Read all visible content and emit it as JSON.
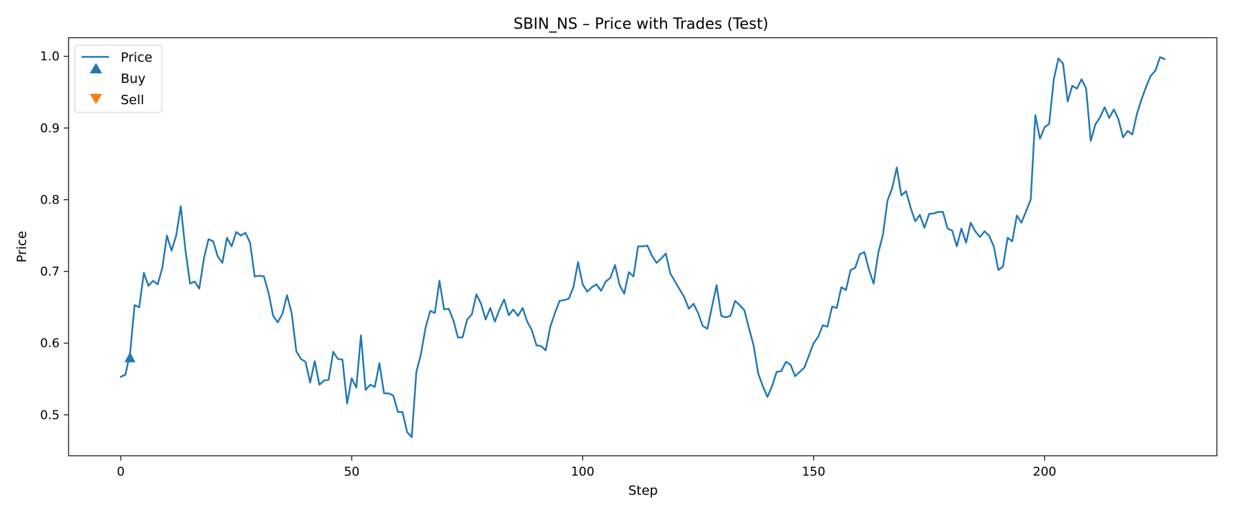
{
  "chart_data": {
    "type": "line",
    "title": "SBIN_NS – Price with Trades (Test)",
    "xlabel": "Step",
    "ylabel": "Price",
    "xlim": [
      -11.3,
      237.3
    ],
    "ylim": [
      0.443,
      1.026
    ],
    "xticks": [
      0,
      50,
      100,
      150,
      200
    ],
    "yticks": [
      0.5,
      0.6,
      0.7,
      0.8,
      0.9,
      1.0
    ],
    "xtick_labels": [
      "0",
      "50",
      "100",
      "150",
      "200"
    ],
    "ytick_labels": [
      "0.5",
      "0.6",
      "0.7",
      "0.8",
      "0.9",
      "1.0"
    ],
    "grid": false,
    "legend_position": "top-left",
    "colors": {
      "price": "#1f77b4",
      "buy": "#1f77b4",
      "sell": "#ff7f0e"
    },
    "series": [
      {
        "name": "Price",
        "type": "line",
        "x_start": 0,
        "values": [
          0.553,
          0.556,
          0.585,
          0.653,
          0.65,
          0.698,
          0.68,
          0.687,
          0.682,
          0.705,
          0.75,
          0.729,
          0.75,
          0.791,
          0.73,
          0.683,
          0.686,
          0.676,
          0.718,
          0.745,
          0.742,
          0.721,
          0.712,
          0.747,
          0.735,
          0.755,
          0.75,
          0.754,
          0.74,
          0.693,
          0.694,
          0.693,
          0.67,
          0.638,
          0.629,
          0.641,
          0.667,
          0.642,
          0.589,
          0.578,
          0.574,
          0.545,
          0.575,
          0.542,
          0.548,
          0.549,
          0.588,
          0.578,
          0.577,
          0.516,
          0.551,
          0.538,
          0.611,
          0.535,
          0.542,
          0.539,
          0.572,
          0.53,
          0.53,
          0.527,
          0.504,
          0.504,
          0.476,
          0.469,
          0.56,
          0.585,
          0.622,
          0.645,
          0.642,
          0.687,
          0.647,
          0.648,
          0.632,
          0.608,
          0.608,
          0.633,
          0.64,
          0.668,
          0.655,
          0.633,
          0.649,
          0.63,
          0.647,
          0.661,
          0.639,
          0.647,
          0.638,
          0.649,
          0.63,
          0.618,
          0.597,
          0.596,
          0.59,
          0.623,
          0.642,
          0.659,
          0.66,
          0.662,
          0.678,
          0.713,
          0.682,
          0.672,
          0.678,
          0.682,
          0.673,
          0.686,
          0.691,
          0.709,
          0.681,
          0.669,
          0.699,
          0.693,
          0.735,
          0.735,
          0.736,
          0.722,
          0.712,
          0.718,
          0.725,
          0.697,
          0.686,
          0.675,
          0.664,
          0.648,
          0.655,
          0.642,
          0.624,
          0.62,
          0.651,
          0.681,
          0.638,
          0.636,
          0.638,
          0.659,
          0.653,
          0.646,
          0.621,
          0.597,
          0.558,
          0.54,
          0.525,
          0.54,
          0.56,
          0.561,
          0.574,
          0.57,
          0.554,
          0.56,
          0.566,
          0.583,
          0.6,
          0.609,
          0.625,
          0.623,
          0.651,
          0.649,
          0.678,
          0.674,
          0.702,
          0.705,
          0.724,
          0.727,
          0.702,
          0.683,
          0.726,
          0.751,
          0.799,
          0.816,
          0.845,
          0.806,
          0.812,
          0.789,
          0.77,
          0.779,
          0.761,
          0.78,
          0.781,
          0.783,
          0.783,
          0.76,
          0.757,
          0.735,
          0.76,
          0.74,
          0.768,
          0.756,
          0.748,
          0.756,
          0.75,
          0.735,
          0.702,
          0.707,
          0.747,
          0.742,
          0.778,
          0.768,
          0.784,
          0.8,
          0.918,
          0.885,
          0.901,
          0.906,
          0.968,
          0.997,
          0.99,
          0.937,
          0.959,
          0.955,
          0.968,
          0.955,
          0.882,
          0.905,
          0.915,
          0.929,
          0.914,
          0.926,
          0.912,
          0.887,
          0.896,
          0.891,
          0.92,
          0.94,
          0.958,
          0.973,
          0.98,
          0.999,
          0.996
        ]
      },
      {
        "name": "Buy",
        "type": "scatter",
        "marker": "triangle-up",
        "points": [
          {
            "x": 2,
            "y": 0.58
          }
        ]
      },
      {
        "name": "Sell",
        "type": "scatter",
        "marker": "triangle-down",
        "points": []
      }
    ]
  }
}
